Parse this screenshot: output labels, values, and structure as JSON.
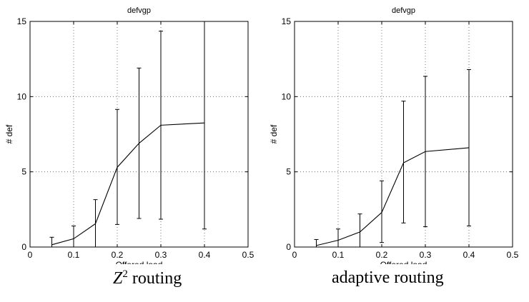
{
  "figures": [
    {
      "caption_var": "Z",
      "caption_sup": "2",
      "caption_rest": " routing",
      "chart_data": {
        "type": "line",
        "title": "defvgp",
        "xlabel": "Offered load",
        "ylabel": "# def",
        "xlim": [
          0,
          0.5
        ],
        "ylim": [
          0,
          15
        ],
        "xticks": [
          "0",
          "0.1",
          "0.2",
          "0.3",
          "0.4",
          "0.5"
        ],
        "yticks": [
          "0",
          "5",
          "10",
          "15"
        ],
        "grid": "dotted-vertical",
        "x": [
          0.05,
          0.1,
          0.15,
          0.2,
          0.25,
          0.3,
          0.4
        ],
        "y": [
          0.15,
          0.55,
          1.55,
          5.3,
          6.9,
          8.1,
          8.25
        ],
        "err_low": [
          0.0,
          0.0,
          0.0,
          1.5,
          1.9,
          1.85,
          1.2
        ],
        "err_high": [
          0.65,
          1.4,
          3.15,
          9.15,
          11.9,
          14.35,
          15.0
        ]
      }
    },
    {
      "caption_text": "adaptive routing",
      "chart_data": {
        "type": "line",
        "title": "defvgp",
        "xlabel": "Offered load",
        "ylabel": "# def",
        "xlim": [
          0,
          0.5
        ],
        "ylim": [
          0,
          15
        ],
        "xticks": [
          "0",
          "0.1",
          "0.2",
          "0.3",
          "0.4",
          "0.5"
        ],
        "yticks": [
          "0",
          "5",
          "10",
          "15"
        ],
        "grid": "dotted-vertical",
        "x": [
          0.05,
          0.1,
          0.15,
          0.2,
          0.25,
          0.3,
          0.4
        ],
        "y": [
          0.1,
          0.45,
          1.0,
          2.3,
          5.6,
          6.35,
          6.6
        ],
        "err_low": [
          0.0,
          0.0,
          0.0,
          0.3,
          1.6,
          1.35,
          1.4
        ],
        "err_high": [
          0.5,
          1.2,
          2.2,
          4.4,
          9.7,
          11.35,
          11.8
        ]
      }
    }
  ]
}
